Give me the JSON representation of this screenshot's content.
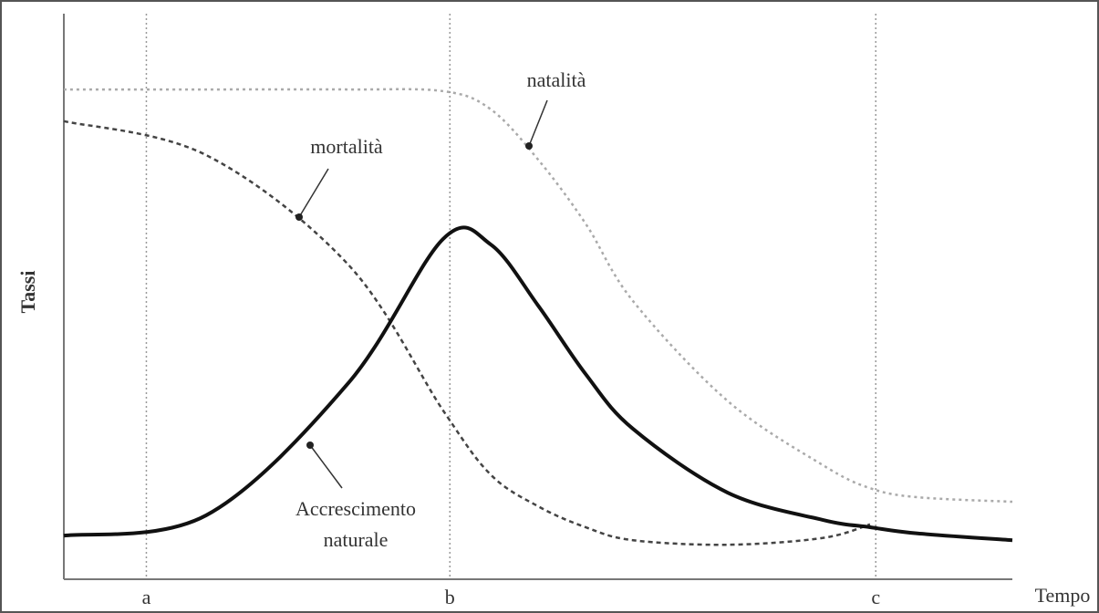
{
  "chart_data": {
    "type": "line",
    "xlabel": "Tempo",
    "ylabel": "Tassi",
    "x": [
      0,
      15,
      30,
      40,
      45,
      50,
      55,
      60,
      70,
      80,
      85,
      90,
      100
    ],
    "xlim": [
      0,
      100
    ],
    "ylim": [
      0,
      100
    ],
    "xticks": [
      {
        "value": 8.7,
        "label": "a"
      },
      {
        "value": 40.7,
        "label": "b"
      },
      {
        "value": 85.6,
        "label": "c"
      }
    ],
    "grid": true,
    "series": [
      {
        "name": "natalità",
        "color": "#aaaaaa",
        "values": [
          86.6,
          86.6,
          86.6,
          86.3,
          83.1,
          74.2,
          62.9,
          49.2,
          31.5,
          20.2,
          16.1,
          14.5,
          13.7
        ]
      },
      {
        "name": "mortalità",
        "color": "#444444",
        "values": [
          81.0,
          75.0,
          55.6,
          29.8,
          18.5,
          12.9,
          9.2,
          6.9,
          6.1,
          7.3,
          9.7,
          null,
          null
        ]
      },
      {
        "name": "Accrescimento naturale",
        "color": "#111111",
        "values": [
          7.7,
          11.3,
          34.7,
          60.2,
          59.2,
          48.4,
          36.3,
          26.6,
          15.3,
          10.5,
          9.2,
          8.1,
          6.9
        ]
      }
    ]
  }
}
